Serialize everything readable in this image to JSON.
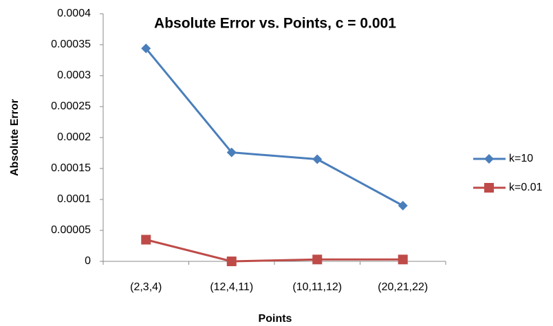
{
  "chart_data": {
    "type": "line",
    "title": "Absolute Error vs. Points, c = 0.001",
    "x_label": "Points",
    "y_label": "Absolute Error",
    "categories": [
      "(2,3,4)",
      "(12,4,11)",
      "(10,11,12)",
      "(20,21,22)"
    ],
    "series": [
      {
        "name": "k=10",
        "color": "#4a7ebb",
        "marker": "diamond",
        "values": [
          0.000344,
          0.000176,
          0.000165,
          9e-05
        ]
      },
      {
        "name": "k=0.01",
        "color": "#be4b48",
        "marker": "square",
        "values": [
          3.5e-05,
          0.0,
          3e-06,
          3e-06
        ]
      }
    ],
    "ylim": [
      0,
      0.0004
    ],
    "yticks": [
      0,
      5e-05,
      0.0001,
      0.00015,
      0.0002,
      0.00025,
      0.0003,
      0.00035,
      0.0004
    ],
    "grid": false,
    "legend": "right"
  }
}
